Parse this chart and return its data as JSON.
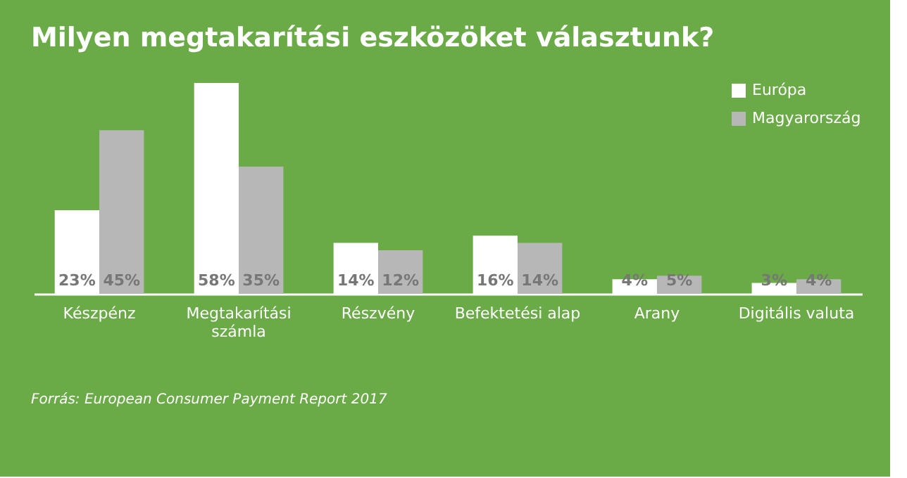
{
  "chart_data": {
    "type": "bar",
    "title": "Milyen megtakarítási eszközöket választunk?",
    "categories": [
      "Készpénz",
      "Megtakarítási számla",
      "Részvény",
      "Befektetési alap",
      "Arany",
      "Digitális valuta"
    ],
    "series": [
      {
        "name": "Európa",
        "color": "#ffffff",
        "values": [
          23,
          58,
          14,
          16,
          4,
          3
        ],
        "value_labels": [
          "23%",
          "58%",
          "14%",
          "16%",
          "4%",
          "3%"
        ]
      },
      {
        "name": "Magyarország",
        "color": "#b7b7b7",
        "values": [
          45,
          35,
          12,
          14,
          5,
          4
        ],
        "value_labels": [
          "45%",
          "35%",
          "12%",
          "14%",
          "5%",
          "4%"
        ]
      }
    ],
    "legend": "top right",
    "grid": false,
    "annotations": [
      "Forrás: European Consumer Payment Report 2017"
    ]
  }
}
